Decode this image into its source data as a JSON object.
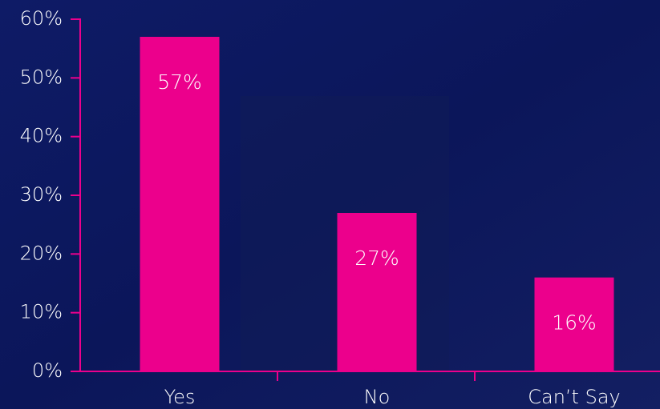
{
  "chart_data": {
    "type": "bar",
    "categories": [
      "Yes",
      "No",
      "Can’t Say"
    ],
    "values": [
      57,
      27,
      16
    ],
    "value_labels": [
      "57%",
      "27%",
      "16%"
    ],
    "color": "#ec008c",
    "axis_color": "#ec008c",
    "ylim": [
      0,
      60
    ],
    "yticks": [
      {
        "value": 0,
        "label": "0%"
      },
      {
        "value": 10,
        "label": "10%"
      },
      {
        "value": 20,
        "label": "20%"
      },
      {
        "value": 30,
        "label": "30%"
      },
      {
        "value": 40,
        "label": "40%"
      },
      {
        "value": 50,
        "label": "50%"
      },
      {
        "value": 60,
        "label": "60%"
      }
    ],
    "grid": false
  }
}
